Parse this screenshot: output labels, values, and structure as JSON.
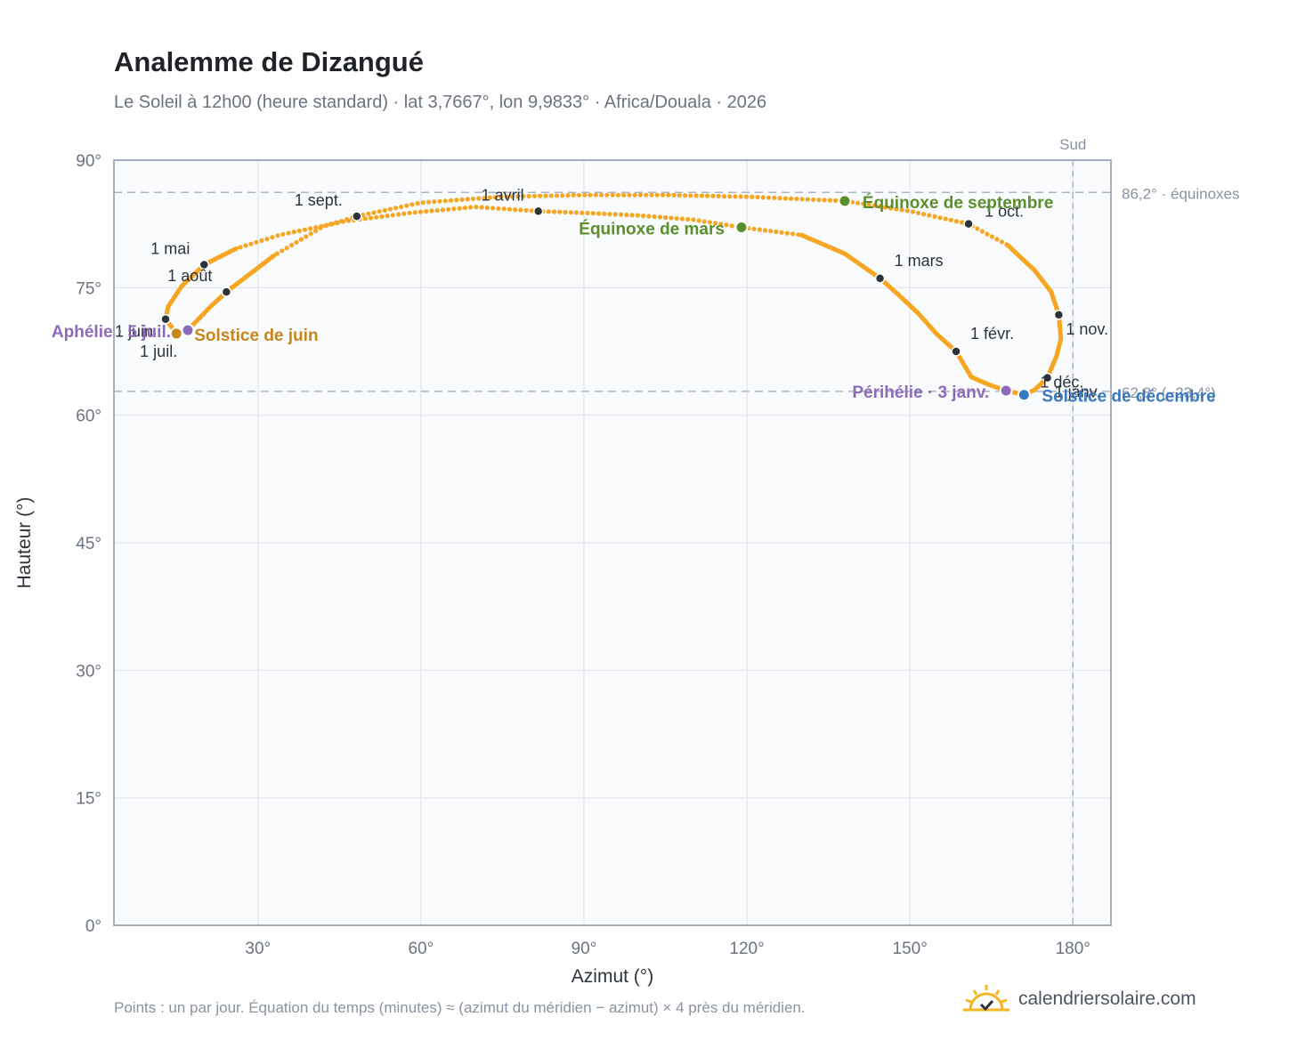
{
  "header": {
    "title": "Analemme de Dizangué",
    "subtitle": "Le Soleil à 12h00 (heure standard) · lat 3,7667°, lon 9,9833° · Africa/Douala · 2026"
  },
  "footer": {
    "note": "Points : un par jour. Équation du temps (minutes) ≈ (azimut du méridien − azimut) × 4 près du méridien.",
    "brand": "calendriersolaire.com"
  },
  "colors": {
    "analemma": "#f5a623",
    "month_marker": "#2d333b",
    "equinox": "#5a8f2e",
    "solstice_june": "#c8861a",
    "solstice_december": "#3a78c0",
    "apsis": "#8e6bb8",
    "reference_line": "#a9b6c3",
    "axis_frame": "#9aa5b1",
    "plot_bg": "#fafbfd",
    "grid": "#e6e9ee"
  },
  "chart_data": {
    "type": "scatter",
    "xlabel": "Azimut (°)",
    "ylabel": "Hauteur (°)",
    "xlim": [
      3.5,
      187
    ],
    "ylim": [
      0,
      90
    ],
    "x_ticks": [
      {
        "value": 30,
        "label": "30°"
      },
      {
        "value": 60,
        "label": "60°"
      },
      {
        "value": 90,
        "label": "90°"
      },
      {
        "value": 120,
        "label": "120°"
      },
      {
        "value": 150,
        "label": "150°"
      },
      {
        "value": 180,
        "label": "180°"
      }
    ],
    "y_ticks": [
      {
        "value": 0,
        "label": "0°"
      },
      {
        "value": 15,
        "label": "15°"
      },
      {
        "value": 30,
        "label": "30°"
      },
      {
        "value": 45,
        "label": "45°"
      },
      {
        "value": 60,
        "label": "60°"
      },
      {
        "value": 75,
        "label": "75°"
      },
      {
        "value": 90,
        "label": "90°"
      }
    ],
    "grid": true,
    "meridian": {
      "azimuth": 180,
      "label": "Sud"
    },
    "reference_lines": [
      {
        "altitude": 86.2,
        "label": "86,2° · équinoxes"
      },
      {
        "altitude": 62.8,
        "label": "62,8° (−23,4°)"
      }
    ],
    "analemma_path": [
      [
        171.0,
        62.4
      ],
      [
        167.7,
        62.9
      ],
      [
        164.5,
        63.6
      ],
      [
        161.3,
        64.5
      ],
      [
        158.5,
        67.5
      ],
      [
        155.0,
        69.5
      ],
      [
        151.5,
        72.0
      ],
      [
        148.0,
        74.1
      ],
      [
        144.5,
        76.1
      ],
      [
        138.0,
        79.0
      ],
      [
        130.0,
        81.2
      ],
      [
        119.0,
        82.1
      ],
      [
        110.0,
        83.0
      ],
      [
        100.0,
        83.5
      ],
      [
        90.0,
        83.8
      ],
      [
        81.6,
        84.0
      ],
      [
        70.0,
        84.5
      ],
      [
        58.0,
        83.8
      ],
      [
        46.0,
        82.8
      ],
      [
        34.0,
        81.2
      ],
      [
        26.0,
        79.6
      ],
      [
        20.1,
        77.7
      ],
      [
        16.0,
        75.2
      ],
      [
        13.5,
        72.8
      ],
      [
        13.0,
        71.3
      ],
      [
        15.0,
        69.6
      ],
      [
        17.1,
        70.0
      ],
      [
        21.0,
        72.6
      ],
      [
        24.2,
        74.5
      ],
      [
        33.0,
        78.8
      ],
      [
        42.0,
        82.2
      ],
      [
        48.2,
        83.4
      ],
      [
        60.0,
        85.0
      ],
      [
        75.0,
        85.7
      ],
      [
        90.0,
        85.9
      ],
      [
        105.0,
        85.9
      ],
      [
        120.0,
        85.7
      ],
      [
        138.0,
        85.2
      ],
      [
        150.0,
        84.0
      ],
      [
        160.8,
        82.5
      ],
      [
        168.0,
        80.0
      ],
      [
        173.0,
        77.0
      ],
      [
        176.0,
        74.5
      ],
      [
        177.4,
        71.8
      ],
      [
        177.8,
        69.0
      ],
      [
        177.0,
        67.0
      ],
      [
        175.3,
        64.4
      ],
      [
        173.0,
        63.0
      ],
      [
        171.0,
        62.4
      ]
    ],
    "solid_path": [
      [
        171.0,
        62.4
      ],
      [
        167.7,
        62.9
      ],
      [
        164.5,
        63.6
      ],
      [
        161.3,
        64.5
      ],
      [
        158.5,
        67.5
      ],
      [
        155.0,
        69.5
      ],
      [
        151.5,
        72.0
      ],
      [
        148.0,
        74.1
      ],
      [
        144.5,
        76.1
      ],
      [
        138.0,
        79.0
      ],
      [
        130.0,
        81.2
      ]
    ],
    "solid_path_2": [
      [
        26.0,
        79.6
      ],
      [
        20.1,
        77.7
      ],
      [
        16.0,
        75.2
      ],
      [
        13.5,
        72.8
      ],
      [
        13.0,
        71.3
      ],
      [
        15.0,
        69.6
      ],
      [
        17.1,
        70.0
      ],
      [
        21.0,
        72.6
      ],
      [
        24.2,
        74.5
      ],
      [
        33.0,
        78.8
      ]
    ],
    "solid_path_3": [
      [
        168.0,
        80.0
      ],
      [
        173.0,
        77.0
      ],
      [
        176.0,
        74.5
      ],
      [
        177.4,
        71.8
      ],
      [
        177.8,
        69.0
      ],
      [
        177.0,
        67.0
      ],
      [
        175.3,
        64.4
      ],
      [
        173.0,
        63.0
      ],
      [
        171.0,
        62.4
      ]
    ],
    "month_markers": [
      {
        "label": "1 janv.",
        "x": 175.3,
        "y": 64.4,
        "anchor": "below-right"
      },
      {
        "label": "1 févr.",
        "x": 158.5,
        "y": 67.5,
        "anchor": "above-right"
      },
      {
        "label": "1 mars",
        "x": 144.5,
        "y": 76.1,
        "anchor": "above-right"
      },
      {
        "label": "1 avril",
        "x": 81.6,
        "y": 84.0,
        "anchor": "above-left"
      },
      {
        "label": "1 mai",
        "x": 20.1,
        "y": 77.7,
        "anchor": "above-left"
      },
      {
        "label": "1 juin",
        "x": 13.0,
        "y": 71.3,
        "anchor": "below-left"
      },
      {
        "label": "1 juil.",
        "x": 15.0,
        "y": 69.6,
        "anchor": "below"
      },
      {
        "label": "1 août",
        "x": 24.2,
        "y": 74.5,
        "anchor": "above-left"
      },
      {
        "label": "1 sept.",
        "x": 48.2,
        "y": 83.4,
        "anchor": "above-left"
      },
      {
        "label": "1 oct.",
        "x": 160.8,
        "y": 82.5,
        "anchor": "right"
      },
      {
        "label": "1 nov.",
        "x": 177.4,
        "y": 71.8,
        "anchor": "below-right"
      },
      {
        "label": "1 déc.",
        "x": 171.0,
        "y": 62.4,
        "anchor": "right"
      }
    ],
    "events": [
      {
        "label": "Équinoxe de mars",
        "x": 119.0,
        "y": 82.1,
        "color_key": "equinox",
        "side": "left"
      },
      {
        "label": "Équinoxe de septembre",
        "x": 138.0,
        "y": 85.2,
        "color_key": "equinox",
        "side": "right"
      },
      {
        "label": "Solstice de juin",
        "x": 15.0,
        "y": 69.6,
        "color_key": "solstice_june",
        "side": "right"
      },
      {
        "label": "Solstice de décembre",
        "x": 171.0,
        "y": 62.4,
        "color_key": "solstice_december",
        "side": "right"
      },
      {
        "label": "Aphélie · 5 juil.",
        "x": 17.1,
        "y": 70.0,
        "color_key": "apsis",
        "side": "left"
      },
      {
        "label": "Périhélie · 3 janv.",
        "x": 167.7,
        "y": 62.9,
        "color_key": "apsis",
        "side": "left"
      }
    ]
  }
}
